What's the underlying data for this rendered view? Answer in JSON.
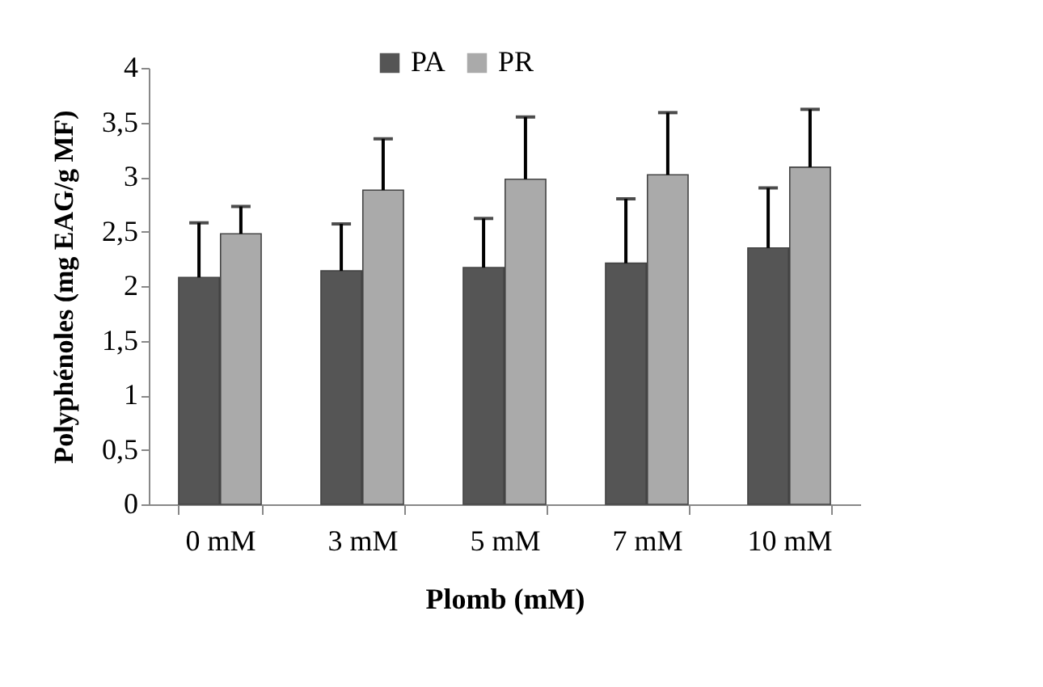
{
  "chart_data": {
    "type": "bar",
    "xlabel": "Plomb (mM)",
    "ylabel": "Polyphénoles (mg EAG/g MF)",
    "categories": [
      "0 mM",
      "3 mM",
      "5 mM",
      "7 mM",
      "10 mM"
    ],
    "series": [
      {
        "name": "PA",
        "color": "#555555",
        "values": [
          2.08,
          2.14,
          2.17,
          2.21,
          2.35
        ],
        "errors": [
          [
            2.08,
            2.58
          ],
          [
            2.14,
            2.57
          ],
          [
            2.17,
            2.62
          ],
          [
            2.21,
            2.8
          ],
          [
            2.35,
            2.9
          ]
        ]
      },
      {
        "name": "PR",
        "color": "#aaaaaa",
        "values": [
          2.48,
          2.88,
          2.98,
          3.02,
          3.09
        ],
        "errors": [
          [
            2.48,
            2.73
          ],
          [
            2.88,
            3.35
          ],
          [
            2.98,
            3.55
          ],
          [
            3.02,
            3.59
          ],
          [
            3.09,
            3.62
          ]
        ]
      }
    ],
    "ylim": [
      0,
      4
    ],
    "yticks": [
      0,
      {
        "value": 0.5,
        "label": "0,5"
      },
      1,
      {
        "value": 1.5,
        "label": "1,5"
      },
      2,
      {
        "value": 2.5,
        "label": "2,5"
      },
      3,
      {
        "value": 3.5,
        "label": "3,5"
      },
      4
    ],
    "legend": "top",
    "grid": false
  }
}
